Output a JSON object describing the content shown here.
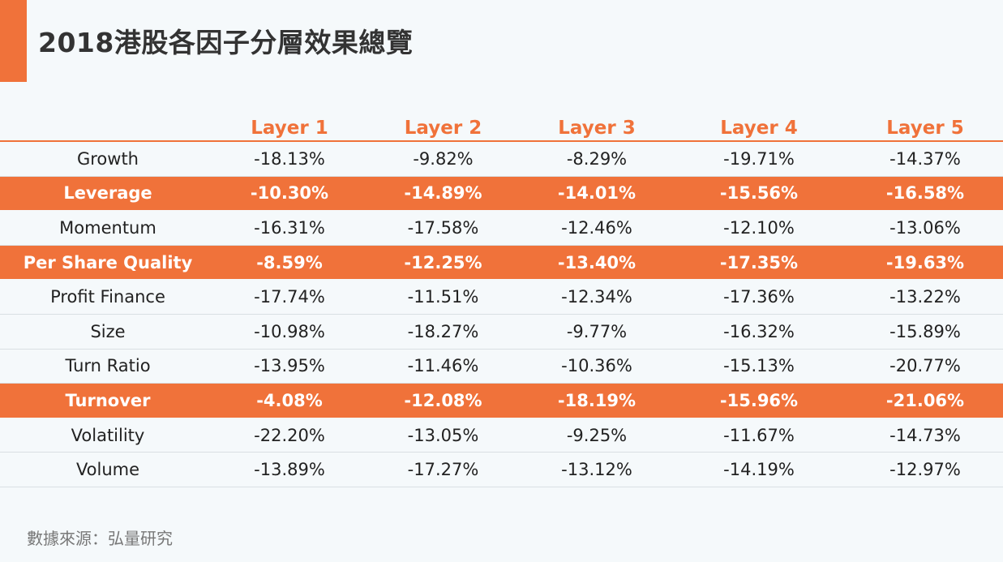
{
  "colors": {
    "accent": "#f0723a",
    "background": "#f5f9fb",
    "highlight_text": "#ffffff"
  },
  "chart_data": {
    "type": "table",
    "title": "2018港股各因子分層效果總覽",
    "columns": [
      "Layer 1",
      "Layer 2",
      "Layer 3",
      "Layer 4",
      "Layer 5"
    ],
    "rows": [
      {
        "name": "Growth",
        "highlight": false,
        "values": [
          "-18.13%",
          "-9.82%",
          "-8.29%",
          "-19.71%",
          "-14.37%"
        ]
      },
      {
        "name": "Leverage",
        "highlight": true,
        "values": [
          "-10.30%",
          "-14.89%",
          "-14.01%",
          "-15.56%",
          "-16.58%"
        ]
      },
      {
        "name": "Momentum",
        "highlight": false,
        "values": [
          "-16.31%",
          "-17.58%",
          "-12.46%",
          "-12.10%",
          "-13.06%"
        ]
      },
      {
        "name": "Per Share Quality",
        "highlight": true,
        "values": [
          "-8.59%",
          "-12.25%",
          "-13.40%",
          "-17.35%",
          "-19.63%"
        ]
      },
      {
        "name": "Profit Finance",
        "highlight": false,
        "values": [
          "-17.74%",
          "-11.51%",
          "-12.34%",
          "-17.36%",
          "-13.22%"
        ]
      },
      {
        "name": "Size",
        "highlight": false,
        "values": [
          "-10.98%",
          "-18.27%",
          "-9.77%",
          "-16.32%",
          "-15.89%"
        ]
      },
      {
        "name": "Turn Ratio",
        "highlight": false,
        "values": [
          "-13.95%",
          "-11.46%",
          "-10.36%",
          "-15.13%",
          "-20.77%"
        ]
      },
      {
        "name": "Turnover",
        "highlight": true,
        "values": [
          "-4.08%",
          "-12.08%",
          "-18.19%",
          "-15.96%",
          "-21.06%"
        ]
      },
      {
        "name": "Volatility",
        "highlight": false,
        "values": [
          "-22.20%",
          "-13.05%",
          "-9.25%",
          "-11.67%",
          "-14.73%"
        ]
      },
      {
        "name": "Volume",
        "highlight": false,
        "values": [
          "-13.89%",
          "-17.27%",
          "-13.12%",
          "-14.19%",
          "-12.97%"
        ]
      }
    ],
    "source": "數據來源：弘量研究"
  }
}
